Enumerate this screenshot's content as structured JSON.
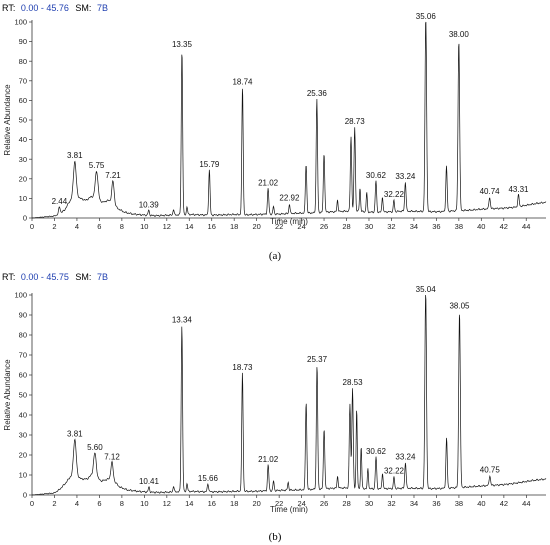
{
  "header_color": "#1f3fb0",
  "trace_color": "#111111",
  "chart_data": [
    {
      "type": "line",
      "header": {
        "rt_label": "RT:",
        "rt_range": "0.00 - 45.76",
        "sm_label": "SM:",
        "sm_value": "7B"
      },
      "caption": "(a)",
      "xlabel": "Time (min)",
      "ylabel": "Relative Abundance",
      "xlim": [
        0,
        45.76
      ],
      "ylim": [
        0,
        100
      ],
      "xticks": [
        0,
        2,
        4,
        6,
        8,
        10,
        12,
        14,
        16,
        18,
        20,
        22,
        24,
        26,
        28,
        30,
        32,
        34,
        36,
        38,
        40,
        42,
        44
      ],
      "yticks": [
        0,
        10,
        20,
        30,
        40,
        50,
        60,
        70,
        80,
        90,
        100
      ],
      "grid": false,
      "baseline": [
        [
          0,
          0
        ],
        [
          2.0,
          1
        ],
        [
          2.4,
          2
        ],
        [
          2.9,
          4
        ],
        [
          3.3,
          8
        ],
        [
          3.8,
          12
        ],
        [
          4.3,
          10
        ],
        [
          4.8,
          9
        ],
        [
          5.3,
          11
        ],
        [
          5.75,
          10
        ],
        [
          6.3,
          8
        ],
        [
          6.8,
          9
        ],
        [
          7.2,
          8
        ],
        [
          7.6,
          5
        ],
        [
          8.2,
          3
        ],
        [
          9.0,
          2
        ],
        [
          10,
          1.5
        ],
        [
          11,
          1.2
        ],
        [
          12,
          1.4
        ],
        [
          13,
          1.6
        ],
        [
          14,
          1.8
        ],
        [
          15,
          1.6
        ],
        [
          16,
          1.5
        ],
        [
          17,
          1.6
        ],
        [
          18,
          1.8
        ],
        [
          19,
          1.6
        ],
        [
          20,
          1.8
        ],
        [
          21,
          2
        ],
        [
          22,
          2
        ],
        [
          23,
          2.3
        ],
        [
          24,
          2.5
        ],
        [
          25,
          2.6
        ],
        [
          26,
          3
        ],
        [
          27,
          3.2
        ],
        [
          28,
          3.5
        ],
        [
          29,
          3.5
        ],
        [
          30,
          3
        ],
        [
          31,
          3
        ],
        [
          32,
          3.2
        ],
        [
          33,
          3.5
        ],
        [
          34,
          3.4
        ],
        [
          35,
          3.3
        ],
        [
          36,
          3.2
        ],
        [
          37,
          3.4
        ],
        [
          38,
          3.8
        ],
        [
          39,
          4
        ],
        [
          40,
          4.5
        ],
        [
          41,
          4.8
        ],
        [
          42,
          5
        ],
        [
          43,
          5.5
        ],
        [
          44,
          6.5
        ],
        [
          45,
          7.5
        ],
        [
          45.76,
          8
        ]
      ],
      "peaks": [
        {
          "rt": 2.44,
          "h": 3.5,
          "w": 0.07,
          "label": "2.44"
        },
        {
          "rt": 3.81,
          "h": 17,
          "w": 0.12,
          "label": "3.81"
        },
        {
          "rt": 5.75,
          "h": 14,
          "w": 0.12,
          "label": "5.75"
        },
        {
          "rt": 7.21,
          "h": 11,
          "w": 0.1,
          "label": "7.21"
        },
        {
          "rt": 10.39,
          "h": 2.5,
          "w": 0.06,
          "label": "10.39"
        },
        {
          "rt": 12.6,
          "h": 3,
          "w": 0.05,
          "label": ""
        },
        {
          "rt": 13.35,
          "h": 84,
          "w": 0.06,
          "label": "13.35"
        },
        {
          "rt": 13.8,
          "h": 4,
          "w": 0.05,
          "label": ""
        },
        {
          "rt": 15.79,
          "h": 23,
          "w": 0.06,
          "label": "15.79"
        },
        {
          "rt": 18.74,
          "h": 65,
          "w": 0.06,
          "label": "18.74"
        },
        {
          "rt": 21.02,
          "h": 13,
          "w": 0.06,
          "label": "21.02"
        },
        {
          "rt": 21.5,
          "h": 4,
          "w": 0.05,
          "label": ""
        },
        {
          "rt": 22.92,
          "h": 5,
          "w": 0.05,
          "label": "22.92"
        },
        {
          "rt": 24.4,
          "h": 25,
          "w": 0.06,
          "label": ""
        },
        {
          "rt": 25.36,
          "h": 58,
          "w": 0.06,
          "label": "25.36"
        },
        {
          "rt": 26.0,
          "h": 30,
          "w": 0.06,
          "label": ""
        },
        {
          "rt": 27.2,
          "h": 6,
          "w": 0.05,
          "label": ""
        },
        {
          "rt": 28.4,
          "h": 38,
          "w": 0.06,
          "label": ""
        },
        {
          "rt": 28.73,
          "h": 43,
          "w": 0.06,
          "label": "28.73"
        },
        {
          "rt": 29.2,
          "h": 12,
          "w": 0.05,
          "label": ""
        },
        {
          "rt": 29.8,
          "h": 10,
          "w": 0.05,
          "label": ""
        },
        {
          "rt": 30.62,
          "h": 16,
          "w": 0.06,
          "label": "30.62"
        },
        {
          "rt": 31.2,
          "h": 8,
          "w": 0.05,
          "label": ""
        },
        {
          "rt": 32.22,
          "h": 6,
          "w": 0.05,
          "label": "32.22"
        },
        {
          "rt": 33.24,
          "h": 15,
          "w": 0.06,
          "label": "33.24"
        },
        {
          "rt": 35.06,
          "h": 100,
          "w": 0.07,
          "label": "35.06"
        },
        {
          "rt": 36.9,
          "h": 23,
          "w": 0.06,
          "label": ""
        },
        {
          "rt": 38.0,
          "h": 87,
          "w": 0.07,
          "label": "38.00"
        },
        {
          "rt": 40.74,
          "h": 6,
          "w": 0.06,
          "label": "40.74"
        },
        {
          "rt": 43.31,
          "h": 6,
          "w": 0.06,
          "label": "43.31"
        }
      ]
    },
    {
      "type": "line",
      "header": {
        "rt_label": "RT:",
        "rt_range": "0.00 - 45.75",
        "sm_label": "SM:",
        "sm_value": "7B"
      },
      "caption": "(b)",
      "xlabel": "Time (min)",
      "ylabel": "Relative Abundance",
      "xlim": [
        0,
        45.75
      ],
      "ylim": [
        0,
        100
      ],
      "xticks": [
        0,
        2,
        4,
        6,
        8,
        10,
        12,
        14,
        16,
        18,
        20,
        22,
        24,
        26,
        28,
        30,
        32,
        34,
        36,
        38,
        40,
        42,
        44
      ],
      "yticks": [
        0,
        10,
        20,
        30,
        40,
        50,
        60,
        70,
        80,
        90,
        100
      ],
      "grid": false,
      "baseline": [
        [
          0,
          0
        ],
        [
          2.0,
          1
        ],
        [
          2.5,
          3
        ],
        [
          3.0,
          6
        ],
        [
          3.4,
          9
        ],
        [
          3.9,
          10
        ],
        [
          4.4,
          8
        ],
        [
          4.9,
          8
        ],
        [
          5.3,
          10
        ],
        [
          5.6,
          9
        ],
        [
          6.2,
          7
        ],
        [
          6.8,
          8
        ],
        [
          7.3,
          7
        ],
        [
          7.8,
          4
        ],
        [
          8.5,
          2.5
        ],
        [
          9.5,
          1.8
        ],
        [
          10.5,
          1.4
        ],
        [
          11.5,
          1.3
        ],
        [
          12.5,
          1.5
        ],
        [
          13.5,
          1.8
        ],
        [
          14.5,
          1.8
        ],
        [
          15.5,
          1.6
        ],
        [
          16.5,
          1.6
        ],
        [
          17.5,
          1.7
        ],
        [
          18.5,
          1.9
        ],
        [
          19.5,
          1.8
        ],
        [
          20.5,
          2
        ],
        [
          21.5,
          2.2
        ],
        [
          22.5,
          2.4
        ],
        [
          23.5,
          2.5
        ],
        [
          24.5,
          2.7
        ],
        [
          25.5,
          3
        ],
        [
          26.5,
          3.3
        ],
        [
          27.5,
          3.5
        ],
        [
          28.5,
          3.6
        ],
        [
          29.5,
          3.2
        ],
        [
          30.5,
          3.1
        ],
        [
          31.5,
          3.2
        ],
        [
          32.5,
          3.3
        ],
        [
          33.5,
          3.4
        ],
        [
          34.5,
          3.3
        ],
        [
          35.5,
          3.2
        ],
        [
          36.5,
          3.3
        ],
        [
          37.5,
          3.6
        ],
        [
          38.5,
          3.9
        ],
        [
          39.5,
          4.3
        ],
        [
          40.5,
          4.7
        ],
        [
          41.5,
          5
        ],
        [
          42.5,
          5.5
        ],
        [
          43.5,
          6.3
        ],
        [
          44.5,
          7.2
        ],
        [
          45.75,
          8
        ]
      ],
      "peaks": [
        {
          "rt": 3.81,
          "h": 18,
          "w": 0.12,
          "label": "3.81"
        },
        {
          "rt": 5.6,
          "h": 12,
          "w": 0.12,
          "label": "5.60"
        },
        {
          "rt": 7.12,
          "h": 9,
          "w": 0.1,
          "label": "7.12"
        },
        {
          "rt": 10.41,
          "h": 2.5,
          "w": 0.06,
          "label": "10.41"
        },
        {
          "rt": 12.6,
          "h": 3,
          "w": 0.05,
          "label": ""
        },
        {
          "rt": 13.34,
          "h": 83,
          "w": 0.06,
          "label": "13.34"
        },
        {
          "rt": 13.8,
          "h": 4,
          "w": 0.05,
          "label": ""
        },
        {
          "rt": 15.66,
          "h": 4,
          "w": 0.06,
          "label": "15.66"
        },
        {
          "rt": 18.73,
          "h": 59,
          "w": 0.06,
          "label": "18.73"
        },
        {
          "rt": 21.02,
          "h": 13,
          "w": 0.06,
          "label": "21.02"
        },
        {
          "rt": 21.5,
          "h": 5,
          "w": 0.05,
          "label": ""
        },
        {
          "rt": 22.8,
          "h": 4,
          "w": 0.05,
          "label": ""
        },
        {
          "rt": 24.4,
          "h": 44,
          "w": 0.06,
          "label": ""
        },
        {
          "rt": 25.37,
          "h": 62,
          "w": 0.06,
          "label": "25.37"
        },
        {
          "rt": 26.0,
          "h": 30,
          "w": 0.06,
          "label": ""
        },
        {
          "rt": 27.2,
          "h": 6,
          "w": 0.05,
          "label": ""
        },
        {
          "rt": 28.3,
          "h": 42,
          "w": 0.06,
          "label": ""
        },
        {
          "rt": 28.53,
          "h": 50,
          "w": 0.06,
          "label": "28.53"
        },
        {
          "rt": 28.9,
          "h": 40,
          "w": 0.05,
          "label": ""
        },
        {
          "rt": 29.3,
          "h": 21,
          "w": 0.05,
          "label": ""
        },
        {
          "rt": 29.9,
          "h": 10,
          "w": 0.05,
          "label": ""
        },
        {
          "rt": 30.62,
          "h": 16,
          "w": 0.06,
          "label": "30.62"
        },
        {
          "rt": 31.2,
          "h": 8,
          "w": 0.05,
          "label": ""
        },
        {
          "rt": 32.22,
          "h": 6,
          "w": 0.05,
          "label": "32.22"
        },
        {
          "rt": 33.24,
          "h": 13,
          "w": 0.06,
          "label": "33.24"
        },
        {
          "rt": 35.04,
          "h": 100,
          "w": 0.07,
          "label": "35.04"
        },
        {
          "rt": 36.9,
          "h": 25,
          "w": 0.06,
          "label": ""
        },
        {
          "rt": 38.05,
          "h": 88,
          "w": 0.07,
          "label": "38.05"
        },
        {
          "rt": 40.75,
          "h": 5,
          "w": 0.06,
          "label": "40.75"
        }
      ]
    }
  ]
}
